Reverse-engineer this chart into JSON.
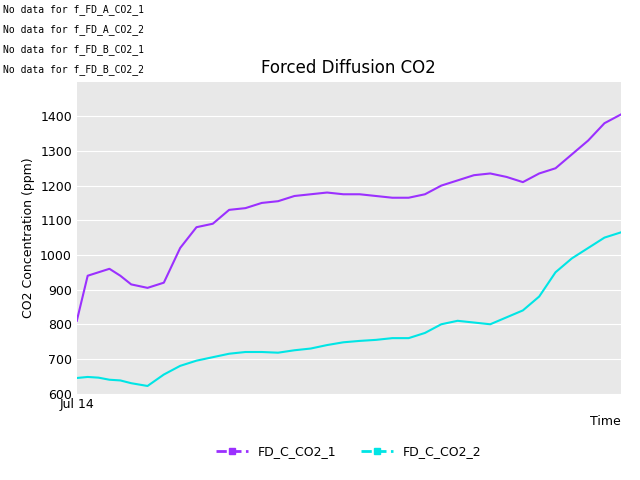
{
  "title": "Forced Diffusion CO2",
  "xlabel": "Time",
  "ylabel": "CO2 Concentration (ppm)",
  "ylim": [
    600,
    1500
  ],
  "yticks": [
    600,
    700,
    800,
    900,
    1000,
    1100,
    1200,
    1300,
    1400
  ],
  "xtick_label": "Jul 14",
  "plot_bg_color": "#e8e8e8",
  "fig_bg_color": "#ffffff",
  "line1_color": "#9b30ff",
  "line2_color": "#00e5e5",
  "line1_label": "FD_C_CO2_1",
  "line2_label": "FD_C_CO2_2",
  "no_data_messages": [
    "No data for f_FD_A_CO2_1",
    "No data for f_FD_A_CO2_2",
    "No data for f_FD_B_CO2_1",
    "No data for f_FD_B_CO2_2"
  ],
  "line1_x": [
    0,
    2,
    4,
    6,
    8,
    10,
    13,
    16,
    19,
    22,
    25,
    28,
    31,
    34,
    37,
    40,
    43,
    46,
    49,
    52,
    55,
    58,
    61,
    64,
    67,
    70,
    73,
    76,
    79,
    82,
    85,
    88,
    91,
    94,
    97,
    100
  ],
  "line1_y": [
    810,
    940,
    950,
    960,
    940,
    915,
    905,
    920,
    1020,
    1080,
    1090,
    1130,
    1135,
    1150,
    1155,
    1170,
    1175,
    1180,
    1175,
    1175,
    1170,
    1165,
    1165,
    1175,
    1200,
    1215,
    1230,
    1235,
    1225,
    1210,
    1235,
    1250,
    1290,
    1330,
    1380,
    1405
  ],
  "line2_x": [
    0,
    2,
    4,
    6,
    8,
    10,
    13,
    16,
    19,
    22,
    25,
    28,
    31,
    34,
    37,
    40,
    43,
    46,
    49,
    52,
    55,
    58,
    61,
    64,
    67,
    70,
    73,
    76,
    79,
    82,
    85,
    88,
    91,
    94,
    97,
    100
  ],
  "line2_y": [
    645,
    648,
    646,
    640,
    638,
    630,
    622,
    655,
    680,
    695,
    705,
    715,
    720,
    720,
    718,
    725,
    730,
    740,
    748,
    752,
    755,
    760,
    760,
    775,
    800,
    810,
    805,
    800,
    820,
    840,
    880,
    950,
    990,
    1020,
    1050,
    1065
  ],
  "no_data_fontsize": 7,
  "title_fontsize": 12,
  "axis_label_fontsize": 9,
  "tick_fontsize": 9,
  "legend_fontsize": 9
}
